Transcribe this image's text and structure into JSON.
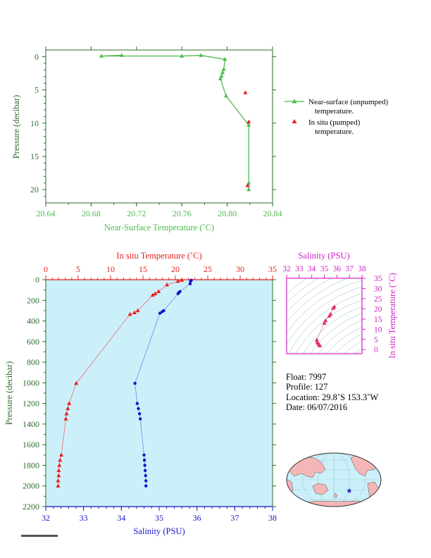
{
  "colors": {
    "near_surface": "#4cbb4c",
    "in_situ_temp": "#e81e1e",
    "salinity": "#1515c8",
    "salinity_axis": "#d020c8",
    "axis_dark": "#2e6b2e",
    "plot_bg": "#ccf0fa",
    "land": "#f4b6b6",
    "ocean": "#ccf0fa"
  },
  "top_chart": {
    "xlabel": "Near-Surface Temperature (˚C)",
    "ylabel": "Pressure (decibar)",
    "xticks": [
      "20.64",
      "20.68",
      "20.72",
      "20.76",
      "20.80",
      "20.84"
    ],
    "yticks": [
      "0",
      "5",
      "10",
      "15",
      "20"
    ],
    "legend": {
      "near_surface_line1": "Near-surface (unpumped)",
      "near_surface_line2": "temperature.",
      "in_situ_line1": "In situ (pumped)",
      "in_situ_line2": "temperature."
    }
  },
  "bottom_chart": {
    "top_xlabel": "In situ Temperature (˚C)",
    "bottom_xlabel": "Salinity (PSU)",
    "ylabel": "Pressure (decibar)",
    "temp_ticks": [
      "0",
      "5",
      "10",
      "15",
      "20",
      "25",
      "30",
      "35"
    ],
    "sal_ticks": [
      "32",
      "33",
      "34",
      "35",
      "36",
      "37",
      "38"
    ],
    "pres_ticks": [
      "0",
      "200",
      "400",
      "600",
      "800",
      "1000",
      "1200",
      "1400",
      "1600",
      "1800",
      "2000",
      "2200"
    ]
  },
  "ts_inset": {
    "xlabel": "Salinity (PSU)",
    "ylabel": "In situ Temperature (˚C)",
    "xticks": [
      "32",
      "33",
      "34",
      "35",
      "36",
      "37",
      "38"
    ],
    "yticks": [
      "0",
      "5",
      "10",
      "15",
      "20",
      "25",
      "30",
      "35"
    ]
  },
  "info": {
    "float": "Float:  7997",
    "profile": "Profile:  127",
    "location": "Location:  29.8˚S  153.3˚W",
    "date": "Date:  06/07/2016"
  },
  "chart_data": [
    {
      "type": "line",
      "title": "",
      "xlabel": "Near-Surface Temperature (˚C)",
      "ylabel": "Pressure (decibar)",
      "xlim": [
        20.64,
        20.84
      ],
      "ylim": [
        22,
        -1
      ],
      "grid": false,
      "legend_position": "right",
      "series": [
        {
          "name": "Near-surface (unpumped) temperature.",
          "mode": "line-triangle",
          "points": [
            [
              20.707,
              -0.2
            ],
            [
              20.689,
              -0.1
            ],
            [
              20.76,
              -0.1
            ],
            [
              20.777,
              -0.2
            ],
            [
              20.798,
              0.4
            ],
            [
              20.797,
              1.9
            ],
            [
              20.796,
              2.4
            ],
            [
              20.795,
              2.9
            ],
            [
              20.794,
              3.3
            ],
            [
              20.799,
              5.9
            ],
            [
              20.819,
              10.3
            ],
            [
              20.819,
              19.0
            ],
            [
              20.819,
              20.0
            ]
          ]
        },
        {
          "name": "In situ (pumped) temperature.",
          "mode": "triangle",
          "points": [
            [
              20.816,
              5.4
            ],
            [
              20.819,
              9.8
            ],
            [
              20.818,
              19.4
            ]
          ]
        }
      ]
    },
    {
      "type": "line",
      "title": "",
      "ylabel": "Pressure (decibar)",
      "ylim": [
        2200,
        0
      ],
      "grid": false,
      "series": [
        {
          "name": "In situ Temperature (˚C)",
          "axis": "top",
          "xlim": [
            0,
            35
          ],
          "points": [
            [
              21.0,
              5
            ],
            [
              20.4,
              15
            ],
            [
              18.7,
              50
            ],
            [
              17.4,
              115
            ],
            [
              16.9,
              135
            ],
            [
              16.5,
              150
            ],
            [
              14.2,
              300
            ],
            [
              13.7,
              320
            ],
            [
              13.0,
              335
            ],
            [
              4.7,
              1005
            ],
            [
              3.6,
              1200
            ],
            [
              3.4,
              1250
            ],
            [
              3.2,
              1300
            ],
            [
              3.1,
              1350
            ],
            [
              2.4,
              1700
            ],
            [
              2.2,
              1750
            ],
            [
              2.1,
              1800
            ],
            [
              2.0,
              1850
            ],
            [
              2.0,
              1900
            ],
            [
              1.9,
              1950
            ],
            [
              1.9,
              2000
            ]
          ]
        },
        {
          "name": "Salinity (PSU)",
          "axis": "bottom",
          "xlim": [
            32,
            38
          ],
          "points": [
            [
              35.85,
              5
            ],
            [
              35.83,
              15
            ],
            [
              35.82,
              40
            ],
            [
              35.55,
              115
            ],
            [
              35.52,
              125
            ],
            [
              35.5,
              135
            ],
            [
              35.12,
              300
            ],
            [
              35.08,
              310
            ],
            [
              35.02,
              325
            ],
            [
              34.36,
              1005
            ],
            [
              34.42,
              1200
            ],
            [
              34.45,
              1250
            ],
            [
              34.48,
              1300
            ],
            [
              34.5,
              1350
            ],
            [
              34.6,
              1700
            ],
            [
              34.61,
              1750
            ],
            [
              34.62,
              1800
            ],
            [
              34.63,
              1850
            ],
            [
              34.64,
              1900
            ],
            [
              34.65,
              1950
            ],
            [
              34.65,
              2000
            ]
          ]
        }
      ]
    },
    {
      "type": "scatter",
      "title": "",
      "xlabel": "Salinity (PSU)",
      "ylabel": "In situ Temperature (˚C)",
      "xlim": [
        32,
        38
      ],
      "ylim": [
        -2,
        35
      ],
      "points": [
        [
          35.8,
          21.0
        ],
        [
          35.7,
          20.3
        ],
        [
          35.5,
          17.4
        ],
        [
          35.4,
          16.5
        ],
        [
          35.1,
          14.2
        ],
        [
          35.0,
          13.0
        ],
        [
          34.4,
          4.7
        ],
        [
          34.45,
          3.6
        ],
        [
          34.5,
          3.1
        ],
        [
          34.6,
          2.4
        ],
        [
          34.63,
          2.0
        ],
        [
          34.65,
          1.9
        ]
      ]
    }
  ]
}
